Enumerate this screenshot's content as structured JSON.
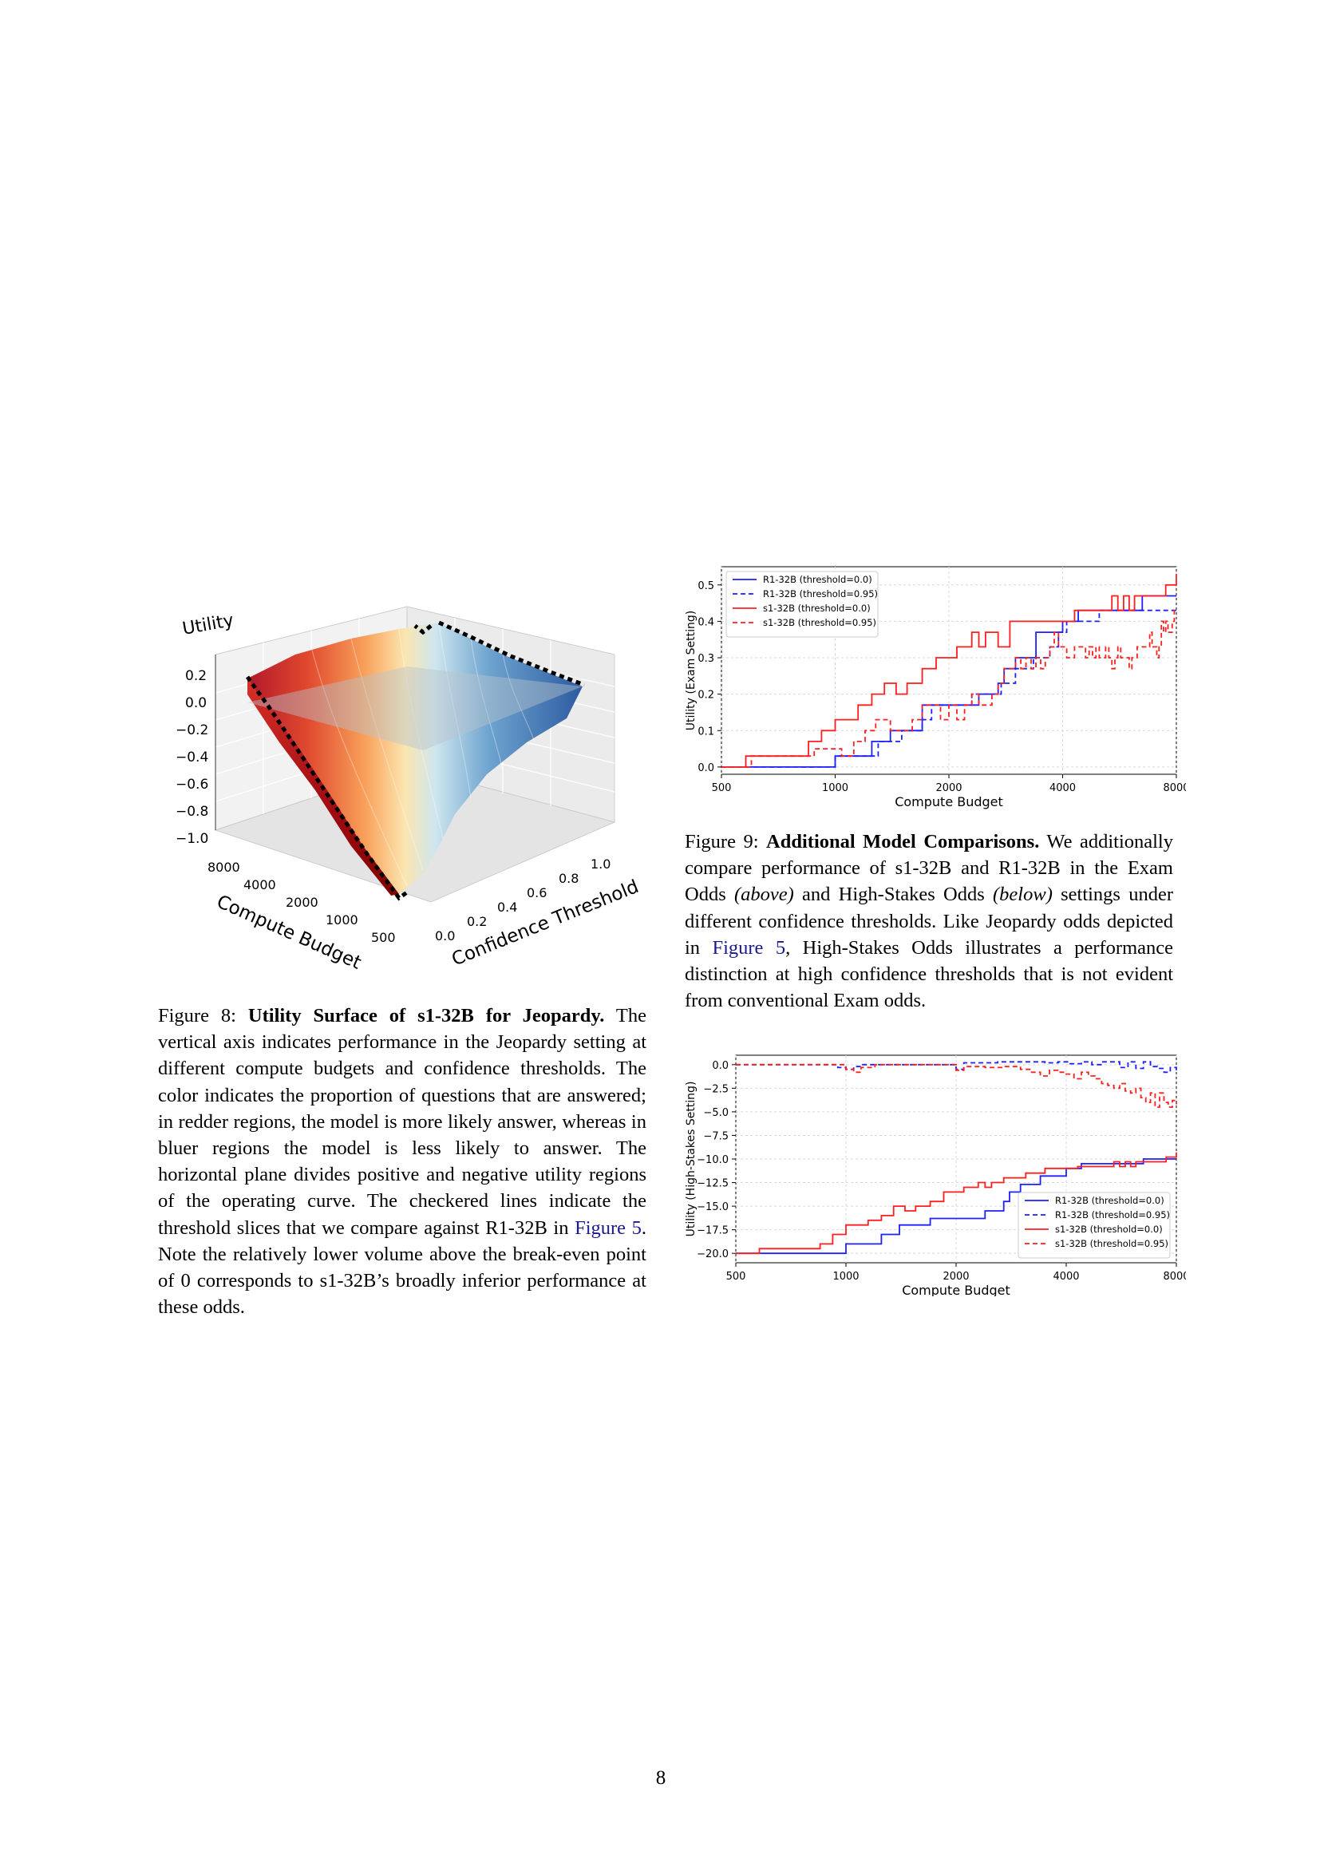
{
  "figure8": {
    "caption_prefix": "Figure 8: ",
    "caption_title": "Utility Surface of s1-32B for Jeopardy.",
    "caption_body1": " The vertical axis indicates performance in the Jeopardy setting at different compute budgets and confidence thresholds. The color indicates the proportion of questions that are answered; in redder regions, the model is more likely answer, whereas in bluer regions the model is less likely to answer. The horizontal plane divides positive and negative utility regions of the operating curve. The checkered lines indicate the threshold slices that we compare against R1-32B in ",
    "caption_ref": "Figure 5",
    "caption_body2": ". Note the relatively lower volume above the break-even point of 0 corresponds to s1-32B’s broadly inferior performance at these odds.",
    "zlabel": "Utility",
    "z_ticks": [
      "0.2",
      "0.0",
      "−0.2",
      "−0.4",
      "−0.6",
      "−0.8",
      "−1.0"
    ],
    "budget_label": "Compute Budget",
    "budget_ticks": [
      "8000",
      "4000",
      "2000",
      "1000",
      "500"
    ],
    "threshold_label": "Confidence Threshold",
    "threshold_ticks": [
      "0.0",
      "0.2",
      "0.4",
      "0.6",
      "0.8",
      "1.0"
    ]
  },
  "figure9": {
    "caption_prefix": "Figure 9: ",
    "caption_title": "Additional Model Comparisons.",
    "caption_body1": " We additionally compare performance of s1-32B and R1-32B in the Exam Odds ",
    "caption_above": "(above)",
    "caption_body2": " and High-Stakes Odds ",
    "caption_below": "(below)",
    "caption_body3": " settings under different confidence thresholds. Like Jeopardy odds depicted in ",
    "caption_ref": "Figure 5",
    "caption_body4": ", High-Stakes Odds illustrates a performance distinction at high confidence thresholds that is not evident from conventional Exam odds."
  },
  "page_number": "8",
  "colors": {
    "r1": "#1f1fff",
    "s1": "#ff1f1f",
    "grid": "#d9d9d9",
    "ref": "#1a1a8f"
  },
  "chart_data": [
    {
      "type": "line",
      "xlabel": "Compute Budget",
      "ylabel": "Utility (Exam Setting)",
      "xscale": "log",
      "xticks": [
        500,
        1000,
        2000,
        4000,
        8000
      ],
      "xlim": [
        500,
        8000
      ],
      "ylim": [
        -0.02,
        0.55
      ],
      "yticks": [
        "0.0",
        "0.1",
        "0.2",
        "0.3",
        "0.4",
        "0.5"
      ],
      "legend_position": "top-left",
      "series": [
        {
          "name": "R1-32B (threshold=0.0)",
          "color": "#1f1fff",
          "dash": false,
          "x": [
            500,
            920,
            1000,
            1120,
            1250,
            1400,
            1600,
            1700,
            2200,
            2400,
            2700,
            2800,
            3000,
            3200,
            3400,
            3600,
            4000,
            4400,
            5500,
            6500,
            8000
          ],
          "y": [
            0.0,
            0.0,
            0.03,
            0.03,
            0.07,
            0.1,
            0.1,
            0.17,
            0.17,
            0.2,
            0.23,
            0.27,
            0.3,
            0.3,
            0.37,
            0.37,
            0.4,
            0.43,
            0.43,
            0.47,
            0.47
          ]
        },
        {
          "name": "R1-32B (threshold=0.95)",
          "color": "#1f1fff",
          "dash": true,
          "x": [
            500,
            900,
            1000,
            1150,
            1300,
            1500,
            1700,
            1800,
            2100,
            2300,
            2600,
            2750,
            3000,
            3200,
            3350,
            3500,
            3700,
            3900,
            4100,
            4400,
            5000,
            5600,
            6500,
            8000
          ],
          "y": [
            0.0,
            0.0,
            0.03,
            0.03,
            0.07,
            0.1,
            0.13,
            0.17,
            0.17,
            0.2,
            0.2,
            0.23,
            0.27,
            0.27,
            0.3,
            0.3,
            0.33,
            0.37,
            0.4,
            0.4,
            0.43,
            0.43,
            0.43,
            0.43
          ]
        },
        {
          "name": "s1-32B (threshold=0.0)",
          "color": "#ff1f1f",
          "dash": false,
          "x": [
            500,
            580,
            780,
            850,
            920,
            1000,
            1080,
            1150,
            1250,
            1350,
            1450,
            1550,
            1700,
            1850,
            2000,
            2100,
            2200,
            2300,
            2400,
            2500,
            2600,
            2700,
            2900,
            3100,
            3500,
            4300,
            4700,
            5200,
            5400,
            5600,
            5800,
            6000,
            6200,
            6500,
            6800,
            7200,
            7500,
            7800,
            8000
          ],
          "y": [
            0.0,
            0.03,
            0.03,
            0.07,
            0.1,
            0.13,
            0.13,
            0.17,
            0.2,
            0.23,
            0.2,
            0.23,
            0.27,
            0.3,
            0.3,
            0.33,
            0.33,
            0.37,
            0.33,
            0.37,
            0.37,
            0.33,
            0.4,
            0.4,
            0.4,
            0.43,
            0.43,
            0.43,
            0.47,
            0.43,
            0.47,
            0.43,
            0.47,
            0.47,
            0.47,
            0.47,
            0.5,
            0.5,
            0.53
          ]
        },
        {
          "name": "s1-32B (threshold=0.95)",
          "color": "#ff1f1f",
          "dash": true,
          "x": [
            500,
            600,
            800,
            880,
            960,
            1040,
            1120,
            1200,
            1280,
            1400,
            1500,
            1600,
            1700,
            1800,
            1900,
            2000,
            2100,
            2200,
            2300,
            2400,
            2500,
            2600,
            2700,
            2800,
            2900,
            3000,
            3100,
            3200,
            3300,
            3400,
            3500,
            3600,
            3700,
            3800,
            3900,
            4000,
            4100,
            4200,
            4300,
            4400,
            4500,
            4600,
            4700,
            4800,
            4900,
            5000,
            5100,
            5200,
            5300,
            5400,
            5500,
            5600,
            5700,
            5800,
            5900,
            6000,
            6100,
            6200,
            6300,
            6400,
            6500,
            6600,
            6700,
            6800,
            6900,
            7000,
            7100,
            7200,
            7300,
            7400,
            7500,
            7600,
            7700,
            7800,
            7900,
            8000
          ],
          "y": [
            0.0,
            0.03,
            0.03,
            0.05,
            0.05,
            0.03,
            0.07,
            0.1,
            0.13,
            0.1,
            0.1,
            0.13,
            0.17,
            0.17,
            0.13,
            0.17,
            0.13,
            0.17,
            0.2,
            0.17,
            0.17,
            0.2,
            0.23,
            0.27,
            0.27,
            0.3,
            0.27,
            0.3,
            0.27,
            0.3,
            0.27,
            0.3,
            0.33,
            0.37,
            0.33,
            0.33,
            0.3,
            0.3,
            0.33,
            0.33,
            0.33,
            0.3,
            0.33,
            0.3,
            0.33,
            0.3,
            0.3,
            0.33,
            0.3,
            0.27,
            0.3,
            0.33,
            0.3,
            0.3,
            0.3,
            0.27,
            0.3,
            0.3,
            0.33,
            0.33,
            0.33,
            0.33,
            0.33,
            0.37,
            0.33,
            0.33,
            0.3,
            0.33,
            0.4,
            0.37,
            0.4,
            0.37,
            0.37,
            0.4,
            0.43,
            0.43
          ]
        }
      ]
    },
    {
      "type": "line",
      "xlabel": "Compute Budget",
      "ylabel": "Utility (High-Stakes Setting)",
      "xscale": "log",
      "xticks": [
        500,
        1000,
        2000,
        4000,
        8000
      ],
      "xlim": [
        500,
        8000
      ],
      "ylim": [
        -21,
        1
      ],
      "yticks": [
        "0.0",
        "−2.5",
        "−5.0",
        "−7.5",
        "−10.0",
        "−12.5",
        "−15.0",
        "−17.5",
        "−20.0"
      ],
      "legend_position": "bottom-right",
      "series": [
        {
          "name": "R1-32B (threshold=0.0)",
          "color": "#1f1fff",
          "dash": false,
          "x": [
            500,
            920,
            1000,
            1120,
            1250,
            1400,
            1600,
            1700,
            2200,
            2400,
            2700,
            2800,
            3000,
            3200,
            3400,
            3600,
            4000,
            4400,
            5500,
            6500,
            8000
          ],
          "y": [
            -20,
            -20,
            -19,
            -19,
            -18,
            -17,
            -17,
            -16.3,
            -16.3,
            -15.5,
            -14.5,
            -13.5,
            -12.7,
            -12.7,
            -11.8,
            -11.8,
            -11,
            -10.5,
            -10.5,
            -10,
            -10
          ]
        },
        {
          "name": "R1-32B (threshold=0.95)",
          "color": "#1f1fff",
          "dash": true,
          "x": [
            500,
            900,
            950,
            1000,
            1050,
            1100,
            1200,
            1300,
            1500,
            1700,
            1900,
            2000,
            2100,
            2300,
            2600,
            2900,
            3200,
            3500,
            3800,
            4100,
            4400,
            4700,
            5000,
            5300,
            5600,
            5900,
            6200,
            6500,
            6800,
            7100,
            7400,
            7700,
            8000
          ],
          "y": [
            0,
            0,
            -0.3,
            -0.5,
            -0.2,
            0,
            0,
            0,
            0,
            0,
            0,
            -0.5,
            0.2,
            0.2,
            0.3,
            0.3,
            0.3,
            0.2,
            0.3,
            0.1,
            0.3,
            0,
            0.3,
            0.3,
            -0.3,
            0.3,
            -0.4,
            0.3,
            -0.2,
            -0.4,
            -0.8,
            -0.3,
            -0.6
          ]
        },
        {
          "name": "s1-32B (threshold=0.0)",
          "color": "#ff1f1f",
          "dash": false,
          "x": [
            500,
            580,
            780,
            850,
            920,
            1000,
            1080,
            1150,
            1250,
            1350,
            1450,
            1550,
            1700,
            1850,
            2000,
            2100,
            2200,
            2300,
            2400,
            2500,
            2600,
            2700,
            2900,
            3100,
            3500,
            4300,
            4700,
            5200,
            5400,
            5600,
            5800,
            6000,
            6200,
            6500,
            6800,
            7200,
            7500,
            7800,
            8000
          ],
          "y": [
            -20,
            -19.5,
            -19.5,
            -19,
            -18,
            -17,
            -17,
            -16.5,
            -16,
            -15,
            -15.5,
            -15,
            -14.5,
            -13.5,
            -13.5,
            -13,
            -13,
            -12.5,
            -13,
            -12.5,
            -12.5,
            -12,
            -12,
            -11.5,
            -11,
            -10.8,
            -10.8,
            -10.8,
            -10.3,
            -10.8,
            -10.3,
            -10.8,
            -10.3,
            -10.3,
            -10.3,
            -10.3,
            -9.8,
            -9.8,
            -9.3
          ]
        },
        {
          "name": "s1-32B (threshold=0.95)",
          "color": "#ff1f1f",
          "dash": true,
          "x": [
            500,
            900,
            1000,
            1050,
            1100,
            1200,
            1400,
            1700,
            1900,
            2000,
            2100,
            2400,
            2700,
            3000,
            3200,
            3400,
            3600,
            3800,
            4000,
            4200,
            4400,
            4600,
            4800,
            5000,
            5200,
            5400,
            5600,
            5800,
            6000,
            6200,
            6400,
            6600,
            6800,
            7000,
            7200,
            7400,
            7600,
            7800,
            8000
          ],
          "y": [
            0,
            0,
            -0.5,
            -0.8,
            -0.3,
            0,
            0,
            0,
            0,
            -0.6,
            -0.2,
            -0.3,
            -0.2,
            -0.5,
            -0.8,
            -1.2,
            -0.6,
            -0.8,
            -1.0,
            -1.5,
            -0.8,
            -1.2,
            -1.5,
            -2.0,
            -2.2,
            -2.5,
            -2.0,
            -2.8,
            -3.0,
            -2.5,
            -3.5,
            -4.0,
            -3.0,
            -4.5,
            -3.0,
            -4.0,
            -4.5,
            -3.8,
            -4.2
          ]
        }
      ]
    }
  ]
}
